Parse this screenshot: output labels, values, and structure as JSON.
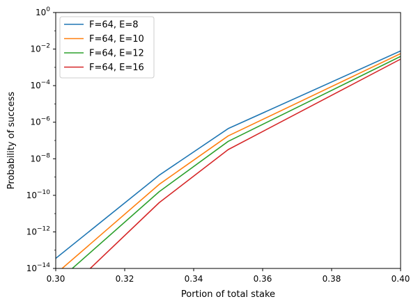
{
  "chart_data": {
    "type": "line",
    "title": "",
    "xlabel": "Portion of total stake",
    "ylabel": "Probability of success",
    "xlim": [
      0.3,
      0.4
    ],
    "ylim_exponents": [
      -14,
      0
    ],
    "yscale": "log",
    "xticks": [
      "0.30",
      "0.32",
      "0.34",
      "0.36",
      "0.38",
      "0.40"
    ],
    "yticks": [
      {
        "base": "10",
        "exp": "0"
      },
      {
        "base": "10",
        "exp": "−2"
      },
      {
        "base": "10",
        "exp": "−4"
      },
      {
        "base": "10",
        "exp": "−6"
      },
      {
        "base": "10",
        "exp": "−8"
      },
      {
        "base": "10",
        "exp": "−10"
      },
      {
        "base": "10",
        "exp": "−12"
      },
      {
        "base": "10",
        "exp": "−14"
      }
    ],
    "legend_position": "top-left",
    "grid": false,
    "series": [
      {
        "name": "F=64, E=8",
        "color": "#1f77b4",
        "x": [
          0.3,
          0.33,
          0.35,
          0.4
        ],
        "log10_y": [
          -13.45,
          -8.9,
          -6.35,
          -2.1
        ]
      },
      {
        "name": "F=64, E=10",
        "color": "#ff7f0e",
        "x": [
          0.3,
          0.33,
          0.35,
          0.4
        ],
        "log10_y": [
          -14.3,
          -9.4,
          -6.75,
          -2.25
        ]
      },
      {
        "name": "F=64, E=12",
        "color": "#2ca02c",
        "x": [
          0.3,
          0.33,
          0.35,
          0.4
        ],
        "log10_y": [
          -14.8,
          -9.8,
          -7.05,
          -2.4
        ]
      },
      {
        "name": "F=64, E=16",
        "color": "#d62728",
        "x": [
          0.3,
          0.33,
          0.35,
          0.4
        ],
        "log10_y": [
          -15.8,
          -10.4,
          -7.5,
          -2.55
        ]
      }
    ]
  }
}
